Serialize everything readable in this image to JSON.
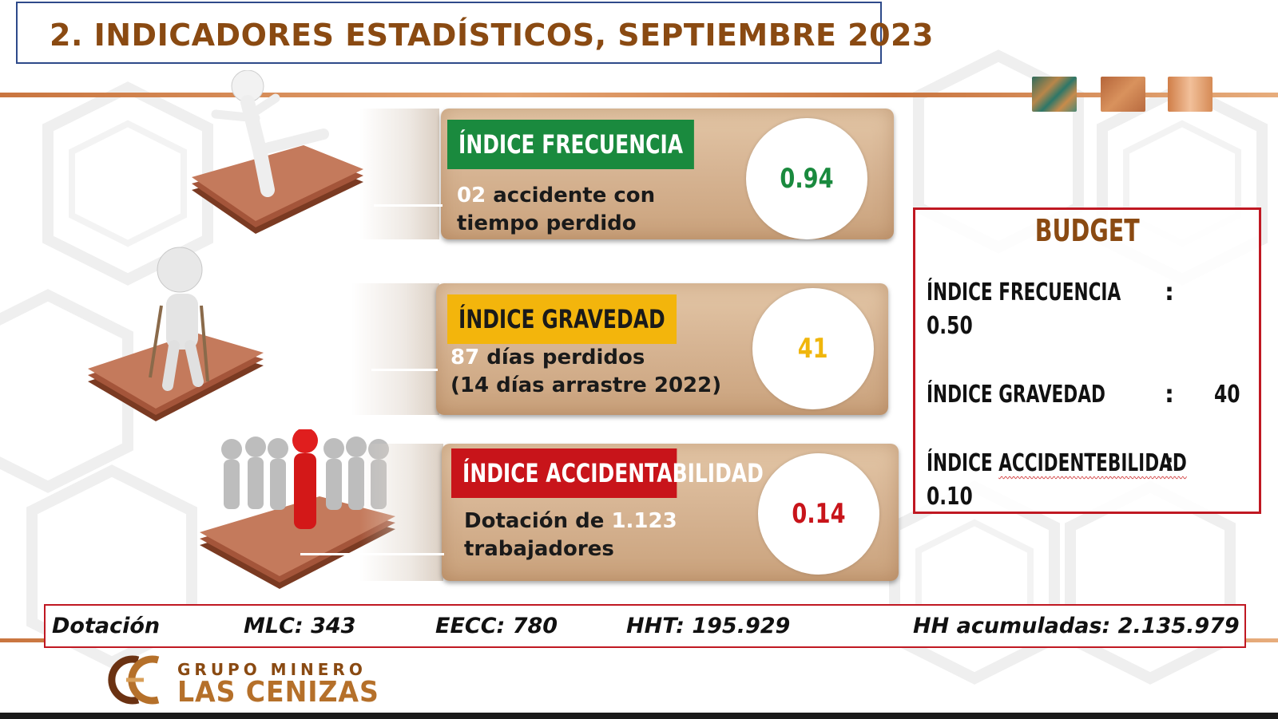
{
  "header": {
    "title": "2. INDICADORES ESTADÍSTICOS, SEPTIEMBRE 2023"
  },
  "colors": {
    "title": "#8a4a12",
    "green": "#1a8a3e",
    "yellow": "#f3b50c",
    "red": "#c8141a",
    "frame_blue": "#2e4a8a"
  },
  "indicators": [
    {
      "label": "ÍNDICE FRECUENCIA",
      "highlight": "02",
      "line1_rest": " accidente con",
      "line2": "tiempo perdido",
      "value": "0.94",
      "color": "green"
    },
    {
      "label": "ÍNDICE GRAVEDAD",
      "highlight": "87",
      "line1_rest": " días perdidos",
      "line2": "(14 días arrastre 2022)",
      "value": "41",
      "color": "yellow"
    },
    {
      "label": "ÍNDICE ACCIDENTABILIDAD",
      "line1_prefix": "Dotación de ",
      "highlight": "1.123",
      "line2": "trabajadores",
      "value": "0.14",
      "color": "red"
    }
  ],
  "budget": {
    "title": "BUDGET",
    "rows": [
      {
        "label": "ÍNDICE FRECUENCIA",
        "colon": ":",
        "value": "0.50"
      },
      {
        "label": "ÍNDICE GRAVEDAD",
        "colon": ":",
        "value": "40"
      },
      {
        "label_a": "ÍNDICE",
        "label_b": "ACCIDENTEBILIDAD",
        "colon": ":",
        "value": "0.10"
      }
    ]
  },
  "dotacion": {
    "label": "Dotación",
    "mlc": "MLC: 343",
    "eecc": "EECC: 780",
    "hht": "HHT: 195.929",
    "hh_acumuladas": "HH acumuladas: 2.135.979"
  },
  "logo": {
    "line1": "GRUPO MINERO",
    "line2": "LAS CENIZAS"
  }
}
